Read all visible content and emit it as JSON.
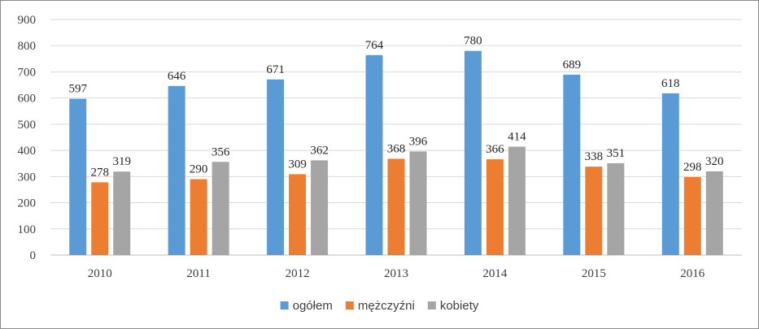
{
  "chart_data": {
    "type": "bar",
    "title": "",
    "xlabel": "",
    "ylabel": "",
    "categories": [
      "2010",
      "2011",
      "2012",
      "2013",
      "2014",
      "2015",
      "2016"
    ],
    "series": [
      {
        "name": "ogółem",
        "color": "#5b9bd5",
        "values": [
          597,
          646,
          671,
          764,
          780,
          689,
          618
        ]
      },
      {
        "name": "mężczyźni",
        "color": "#ed7d31",
        "values": [
          278,
          290,
          309,
          368,
          366,
          338,
          298
        ]
      },
      {
        "name": "kobiety",
        "color": "#a5a5a5",
        "values": [
          319,
          356,
          362,
          396,
          414,
          351,
          320
        ]
      }
    ],
    "ylim": [
      0,
      900
    ],
    "yticks": [
      0,
      100,
      200,
      300,
      400,
      500,
      600,
      700,
      800,
      900
    ],
    "grid": true,
    "data_labels": true,
    "legend_position": "bottom"
  }
}
